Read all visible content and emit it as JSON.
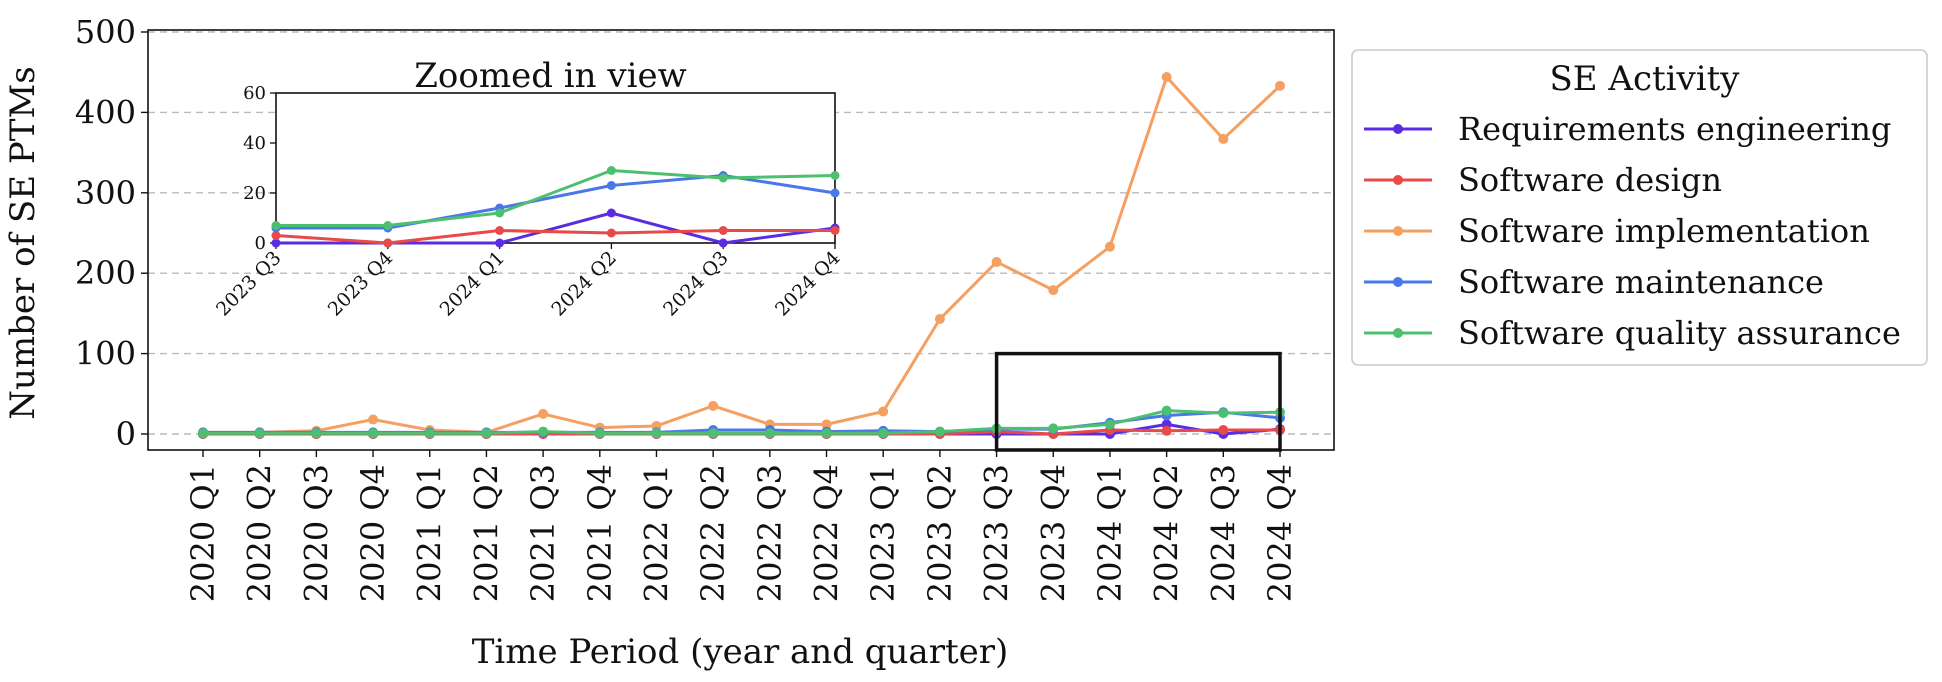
{
  "chart_data": {
    "type": "line",
    "xlabel": "Time Period (year and quarter)",
    "ylabel": "Number of SE PTMs",
    "ylim": [
      0,
      500
    ],
    "yticks": [
      0,
      100,
      200,
      300,
      400,
      500
    ],
    "grid": "horizontal dashed",
    "categories": [
      "2020 Q1",
      "2020 Q2",
      "2020 Q3",
      "2020 Q4",
      "2021 Q1",
      "2021 Q2",
      "2021 Q3",
      "2021 Q4",
      "2022 Q1",
      "2022 Q2",
      "2022 Q3",
      "2022 Q4",
      "2023 Q1",
      "2023 Q2",
      "2023 Q3",
      "2023 Q4",
      "2024 Q1",
      "2024 Q2",
      "2024 Q3",
      "2024 Q4"
    ],
    "series": [
      {
        "name": "Requirements engineering",
        "color": "#5a2ee0",
        "values": [
          0,
          0,
          0,
          0,
          0,
          0,
          0,
          0,
          0,
          0,
          0,
          0,
          0,
          0,
          0,
          0,
          0,
          12,
          0,
          6
        ]
      },
      {
        "name": "Software design",
        "color": "#e84a4a",
        "values": [
          0,
          0,
          0,
          0,
          0,
          0,
          0,
          0,
          0,
          0,
          0,
          0,
          0,
          0,
          3,
          0,
          5,
          4,
          5,
          5
        ]
      },
      {
        "name": "Software implementation",
        "color": "#f5a060",
        "values": [
          2,
          2,
          4,
          18,
          5,
          2,
          25,
          8,
          10,
          35,
          12,
          12,
          28,
          143,
          214,
          179,
          233,
          444,
          367,
          433
        ]
      },
      {
        "name": "Software maintenance",
        "color": "#4a78e8",
        "values": [
          2,
          2,
          2,
          2,
          2,
          2,
          2,
          2,
          2,
          5,
          5,
          3,
          4,
          3,
          6,
          6,
          14,
          23,
          27,
          20
        ]
      },
      {
        "name": "Software quality assurance",
        "color": "#4cc070",
        "values": [
          1,
          1,
          1,
          1,
          1,
          1,
          3,
          1,
          1,
          1,
          1,
          1,
          1,
          3,
          7,
          7,
          12,
          29,
          26,
          27
        ]
      }
    ],
    "legend": {
      "title": "SE Activity",
      "placement": "right, outside"
    },
    "zoom_box": {
      "x_from": "2023 Q3",
      "x_to": "2024 Q4",
      "y_from": 0,
      "y_to": 100
    },
    "inset": {
      "title": "Zoomed in view",
      "categories": [
        "2023 Q3",
        "2023 Q4",
        "2024 Q1",
        "2024 Q2",
        "2024 Q3",
        "2024 Q4"
      ],
      "ylim": [
        0,
        60
      ],
      "yticks": [
        0,
        20,
        40,
        60
      ]
    }
  }
}
